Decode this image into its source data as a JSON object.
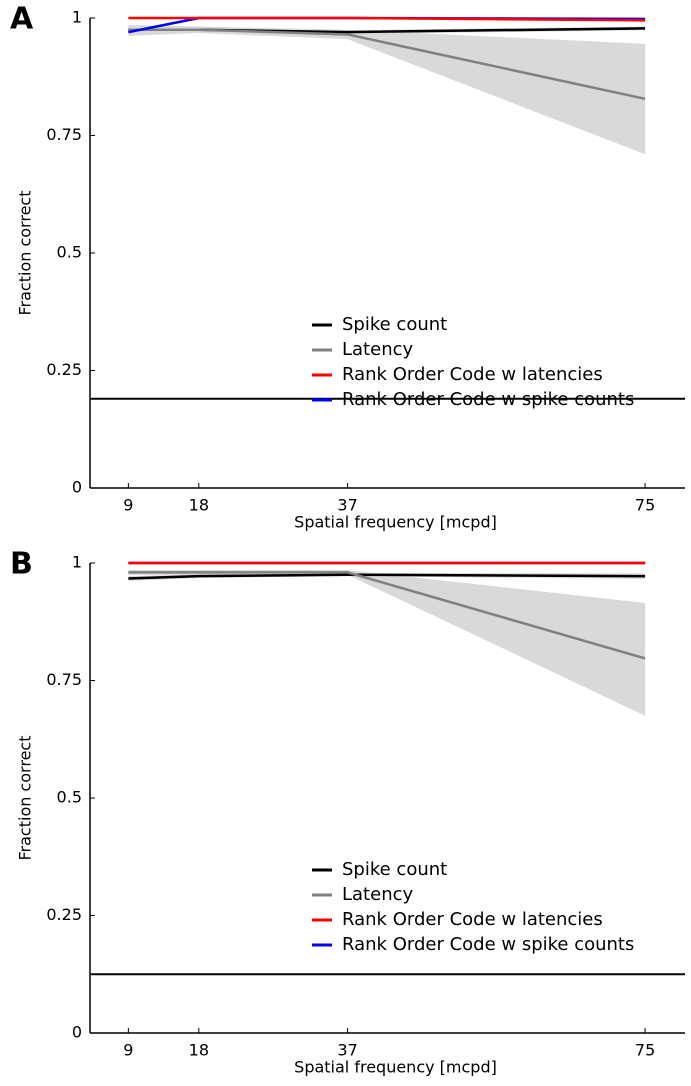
{
  "chart_data": [
    {
      "type": "line",
      "panel_label": "A",
      "x_label": "Spatial frequency [mcpd]",
      "y_label": "Fraction correct",
      "x": [
        9,
        18,
        37,
        75
      ],
      "xlim": [
        4.1,
        80.1
      ],
      "xticks": [
        9,
        18,
        37,
        75
      ],
      "ylim": [
        0,
        1
      ],
      "yticks": [
        0,
        0.25,
        0.5,
        0.75,
        1
      ],
      "hline": 0.19,
      "hline_color": "#000000",
      "band_color": "#d9d9d9",
      "legend": "lower right",
      "series": [
        {
          "name": "Spike count",
          "color": "#000000",
          "values": [
            0.975,
            0.975,
            0.97,
            0.978
          ],
          "lower": [
            0.97,
            0.972,
            0.966,
            0.974
          ],
          "upper": [
            0.98,
            0.978,
            0.974,
            0.982
          ]
        },
        {
          "name": "Latency",
          "color": "#808080",
          "values": [
            0.975,
            0.975,
            0.965,
            0.828
          ],
          "lower": [
            0.962,
            0.968,
            0.955,
            0.71
          ],
          "upper": [
            0.985,
            0.982,
            0.975,
            0.945
          ]
        },
        {
          "name": "Rank Order Code w latencies",
          "color": "#ff0000",
          "values": [
            1,
            1,
            1,
            0.995
          ]
        },
        {
          "name": "Rank Order Code w spike counts",
          "color": "#0000ff",
          "values": [
            0.97,
            1,
            1,
            0.998
          ]
        }
      ]
    },
    {
      "type": "line",
      "panel_label": "B",
      "x_label": "Spatial frequency [mcpd]",
      "y_label": "Fraction correct",
      "x": [
        9,
        18,
        37,
        75
      ],
      "xlim": [
        4.1,
        80.1
      ],
      "xticks": [
        9,
        18,
        37,
        75
      ],
      "ylim": [
        0,
        1
      ],
      "yticks": [
        0,
        0.25,
        0.5,
        0.75,
        1
      ],
      "hline": 0.125,
      "hline_color": "#000000",
      "band_color": "#d9d9d9",
      "legend": "lower right",
      "series": [
        {
          "name": "Spike count",
          "color": "#000000",
          "values": [
            0.967,
            0.972,
            0.975,
            0.972
          ],
          "lower": [
            0.962,
            0.968,
            0.972,
            0.966
          ],
          "upper": [
            0.972,
            0.976,
            0.979,
            0.978
          ]
        },
        {
          "name": "Latency",
          "color": "#808080",
          "values": [
            0.98,
            0.98,
            0.98,
            0.797
          ],
          "lower": [
            0.975,
            0.975,
            0.975,
            0.675
          ],
          "upper": [
            0.985,
            0.985,
            0.985,
            0.915
          ]
        },
        {
          "name": "Rank Order Code w latencies",
          "color": "#ff0000",
          "values": [
            1,
            1,
            1,
            1
          ]
        },
        {
          "name": "Rank Order Code w spike counts",
          "color": "#0000ff",
          "values": [
            1,
            1,
            1,
            1
          ]
        }
      ]
    }
  ]
}
